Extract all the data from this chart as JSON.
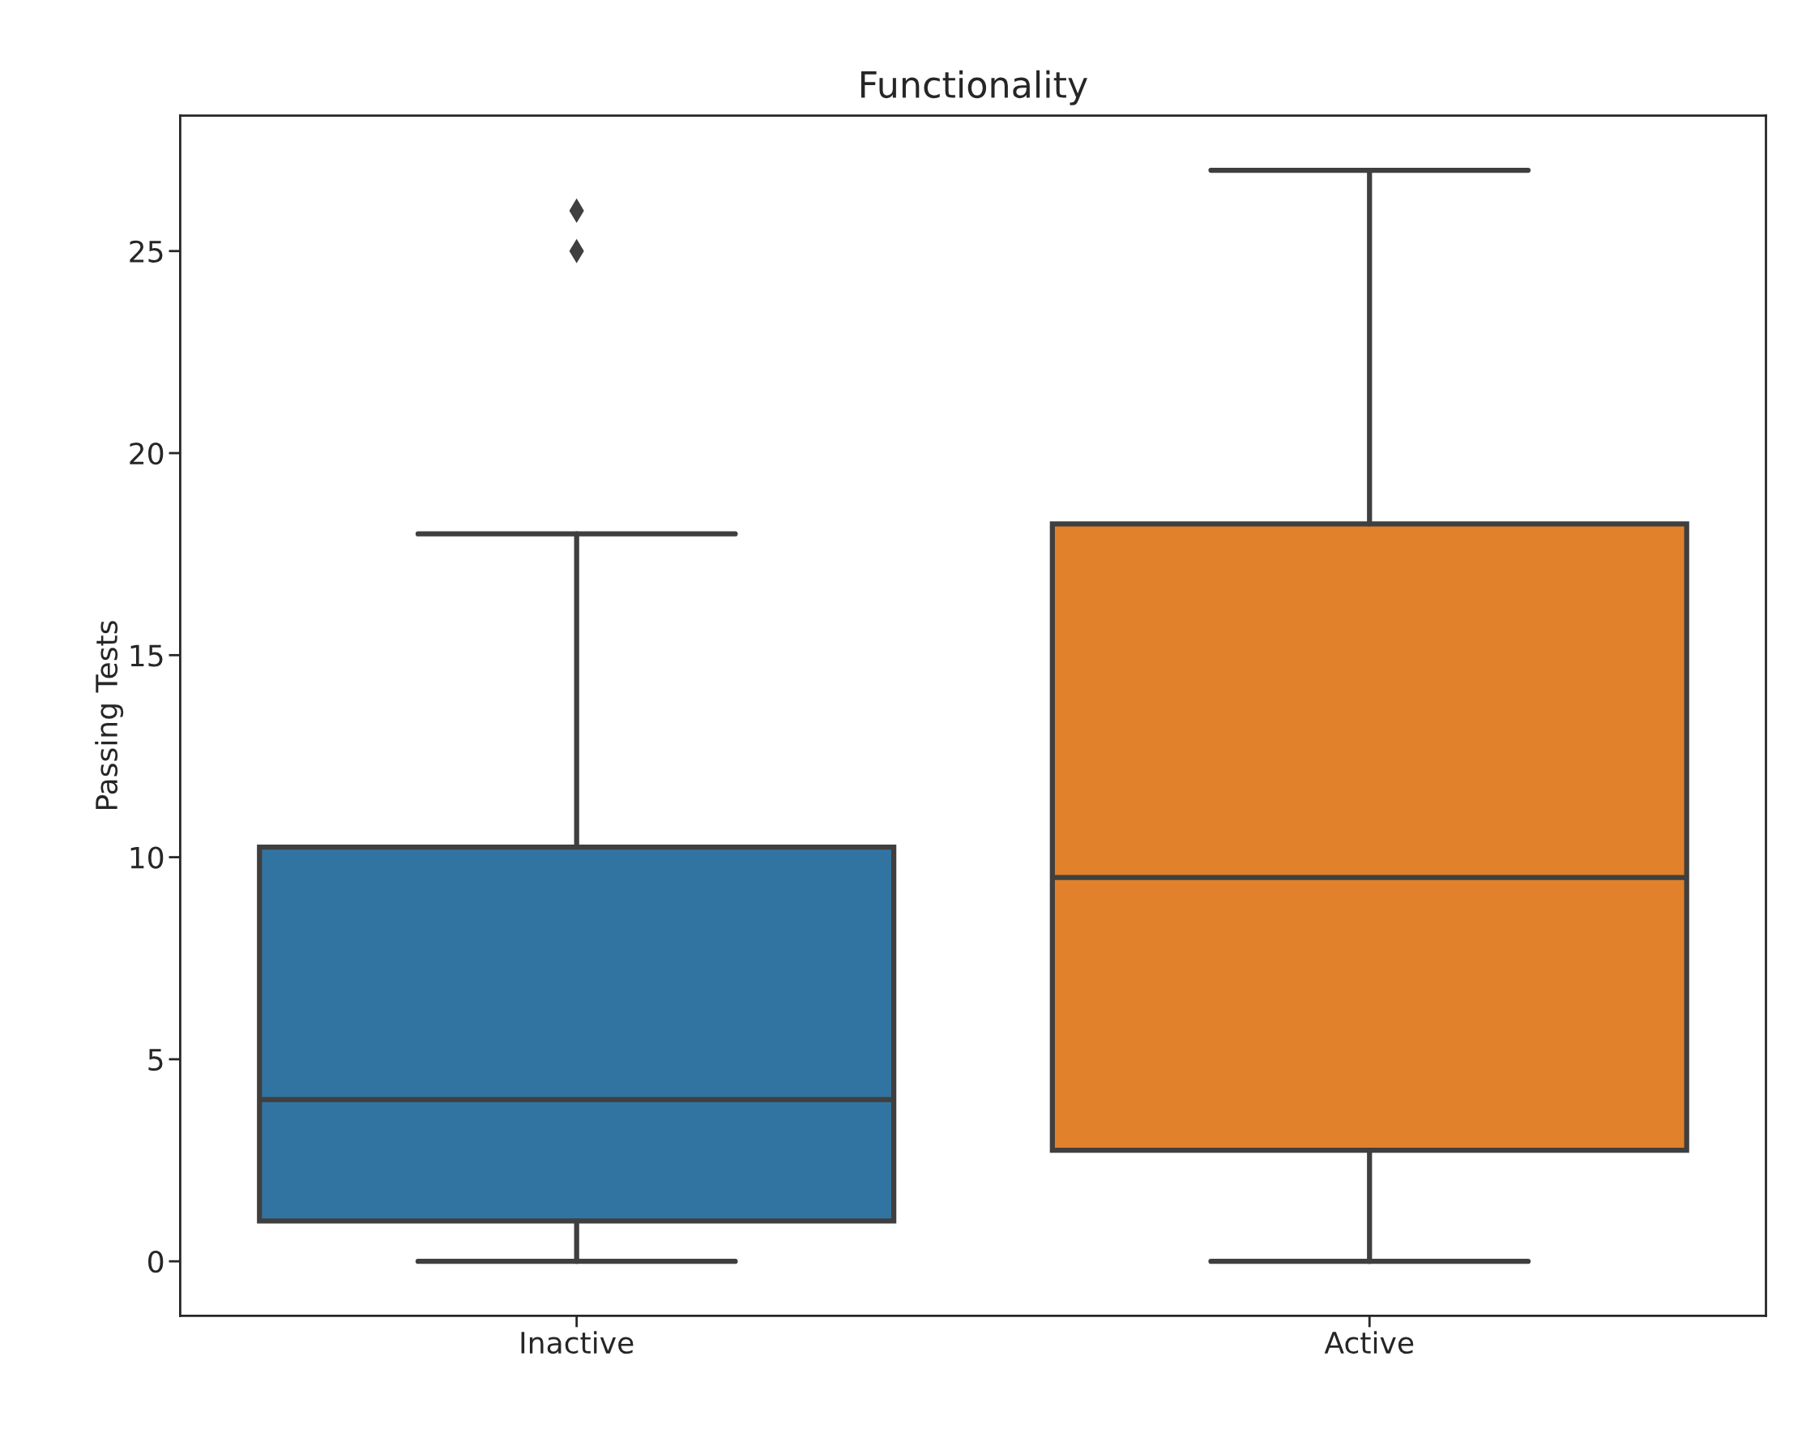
{
  "chart_data": {
    "type": "box",
    "title": "Functionality",
    "ylabel": "Passing Tests",
    "categories": [
      "Inactive",
      "Active"
    ],
    "colors": [
      "#3274a1",
      "#e1812c"
    ],
    "boxes": [
      {
        "low": 0,
        "q1": 1,
        "median": 4,
        "q3": 10.25,
        "high": 18,
        "outliers": [
          25,
          26
        ]
      },
      {
        "low": 0,
        "q1": 2.75,
        "median": 9.5,
        "q3": 18.25,
        "high": 27
      }
    ],
    "marker": "diamond",
    "ylim": [
      -1.35,
      28.35
    ],
    "yticks": [
      0,
      5,
      10,
      15,
      20,
      25
    ],
    "grid": false
  }
}
